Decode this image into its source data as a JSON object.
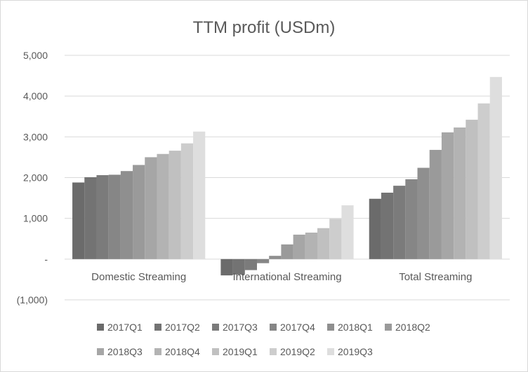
{
  "chart_data": {
    "type": "bar",
    "title": "TTM profit (USDm)",
    "xlabel": "",
    "ylabel": "",
    "ylim": [
      -1000,
      5000
    ],
    "yticks": [
      {
        "value": 5000,
        "label": "5,000"
      },
      {
        "value": 4000,
        "label": "4,000"
      },
      {
        "value": 3000,
        "label": "3,000"
      },
      {
        "value": 2000,
        "label": "2,000"
      },
      {
        "value": 1000,
        "label": "1,000"
      },
      {
        "value": 0,
        "label": "-"
      },
      {
        "value": -1000,
        "label": "(1,000)"
      }
    ],
    "grid": true,
    "legend_position": "bottom",
    "categories": [
      "Domestic Streaming",
      "International Streaming",
      "Total Streaming"
    ],
    "series": [
      {
        "name": "2017Q1",
        "color": "#6b6b6b",
        "values": [
          1880,
          -400,
          1480
        ]
      },
      {
        "name": "2017Q2",
        "color": "#737373",
        "values": [
          2010,
          -380,
          1630
        ]
      },
      {
        "name": "2017Q3",
        "color": "#7b7b7b",
        "values": [
          2060,
          -270,
          1800
        ]
      },
      {
        "name": "2017Q4",
        "color": "#868686",
        "values": [
          2070,
          -100,
          1960
        ]
      },
      {
        "name": "2018Q1",
        "color": "#8f8f8f",
        "values": [
          2160,
          80,
          2240
        ]
      },
      {
        "name": "2018Q2",
        "color": "#9a9a9a",
        "values": [
          2310,
          360,
          2680
        ]
      },
      {
        "name": "2018Q3",
        "color": "#a6a6a6",
        "values": [
          2500,
          600,
          3110
        ]
      },
      {
        "name": "2018Q4",
        "color": "#b3b3b3",
        "values": [
          2580,
          650,
          3230
        ]
      },
      {
        "name": "2019Q1",
        "color": "#c0c0c0",
        "values": [
          2660,
          760,
          3420
        ]
      },
      {
        "name": "2019Q2",
        "color": "#cdcdcd",
        "values": [
          2840,
          990,
          3820
        ]
      },
      {
        "name": "2019Q3",
        "color": "#dedede",
        "values": [
          3130,
          1320,
          4470
        ]
      }
    ]
  }
}
